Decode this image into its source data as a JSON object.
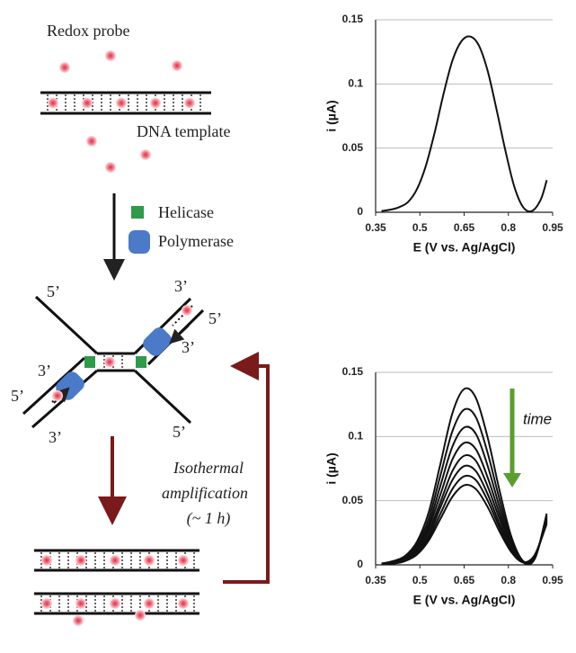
{
  "diagram": {
    "redox_label": "Redox probe",
    "template_label": "DNA template",
    "helicase_label": "Helicase",
    "polymerase_label": "Polymerase",
    "end_labels": [
      "5’",
      "3’",
      "5’",
      "3’",
      "3’",
      "5’",
      "3’",
      "5’"
    ],
    "amplification_label": [
      "Isothermal",
      "amplification",
      "(~ 1 h)"
    ]
  },
  "chart_data": [
    {
      "type": "line",
      "x_label": "E (V vs. Ag/AgCl)",
      "y_label": "i (µA)",
      "x": [
        0.37,
        0.4,
        0.43,
        0.46,
        0.49,
        0.52,
        0.55,
        0.58,
        0.61,
        0.64,
        0.67,
        0.7,
        0.73,
        0.76,
        0.79,
        0.82,
        0.85,
        0.88,
        0.91,
        0.93
      ],
      "series": [
        {
          "color": "#111111",
          "values": [
            0.001,
            0.002,
            0.004,
            0.008,
            0.018,
            0.036,
            0.062,
            0.092,
            0.118,
            0.133,
            0.137,
            0.13,
            0.11,
            0.08,
            0.048,
            0.02,
            0.004,
            0.001,
            0.01,
            0.025
          ]
        }
      ],
      "xlim": [
        0.35,
        0.95
      ],
      "ylim": [
        0,
        0.15
      ],
      "xticks": [
        0.35,
        0.5,
        0.65,
        0.8,
        0.95
      ],
      "yticks": [
        0,
        0.05,
        0.1,
        0.15
      ],
      "grid": true
    },
    {
      "type": "line",
      "x_label": "E (V vs. Ag/AgCl)",
      "y_label": "i (µA)",
      "annotation": "time",
      "annotation_color": "#5a9e2f",
      "x": [
        0.37,
        0.41,
        0.45,
        0.49,
        0.53,
        0.57,
        0.61,
        0.65,
        0.69,
        0.73,
        0.77,
        0.81,
        0.85,
        0.89,
        0.93
      ],
      "series": [
        {
          "color": "#111111",
          "values": [
            0.001,
            0.003,
            0.007,
            0.018,
            0.041,
            0.079,
            0.118,
            0.137,
            0.13,
            0.099,
            0.058,
            0.022,
            0.003,
            0.005,
            0.04
          ]
        },
        {
          "color": "#111111",
          "values": [
            0.001,
            0.002,
            0.006,
            0.016,
            0.036,
            0.07,
            0.104,
            0.121,
            0.115,
            0.087,
            0.051,
            0.019,
            0.002,
            0.005,
            0.038
          ]
        },
        {
          "color": "#111111",
          "values": [
            0.001,
            0.002,
            0.005,
            0.014,
            0.032,
            0.062,
            0.092,
            0.107,
            0.102,
            0.077,
            0.045,
            0.017,
            0.002,
            0.006,
            0.037
          ]
        },
        {
          "color": "#111111",
          "values": [
            0.001,
            0.002,
            0.005,
            0.012,
            0.029,
            0.055,
            0.082,
            0.095,
            0.09,
            0.068,
            0.04,
            0.015,
            0.002,
            0.006,
            0.036
          ]
        },
        {
          "color": "#111111",
          "values": [
            0.001,
            0.002,
            0.004,
            0.011,
            0.026,
            0.049,
            0.073,
            0.085,
            0.081,
            0.061,
            0.036,
            0.014,
            0.002,
            0.007,
            0.035
          ]
        },
        {
          "color": "#111111",
          "values": [
            0.001,
            0.002,
            0.004,
            0.01,
            0.023,
            0.045,
            0.066,
            0.077,
            0.073,
            0.055,
            0.032,
            0.012,
            0.002,
            0.007,
            0.034
          ]
        },
        {
          "color": "#111111",
          "values": [
            0.001,
            0.001,
            0.003,
            0.009,
            0.021,
            0.04,
            0.059,
            0.069,
            0.066,
            0.05,
            0.029,
            0.011,
            0.002,
            0.008,
            0.033
          ]
        },
        {
          "color": "#111111",
          "values": [
            0.001,
            0.001,
            0.003,
            0.008,
            0.019,
            0.036,
            0.053,
            0.062,
            0.059,
            0.045,
            0.026,
            0.01,
            0.002,
            0.008,
            0.032
          ]
        }
      ],
      "xlim": [
        0.35,
        0.95
      ],
      "ylim": [
        0,
        0.15
      ],
      "xticks": [
        0.35,
        0.5,
        0.65,
        0.8,
        0.95
      ],
      "yticks": [
        0,
        0.05,
        0.1,
        0.15
      ],
      "grid": true
    }
  ]
}
